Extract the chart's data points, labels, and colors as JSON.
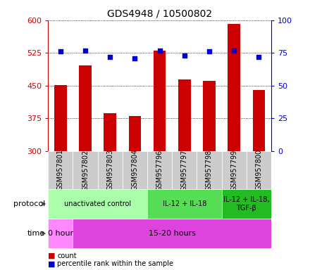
{
  "title": "GDS4948 / 10500802",
  "samples": [
    "GSM957801",
    "GSM957802",
    "GSM957803",
    "GSM957804",
    "GSM957796",
    "GSM957797",
    "GSM957798",
    "GSM957799",
    "GSM957800"
  ],
  "bar_values": [
    451,
    497,
    387,
    381,
    530,
    465,
    461,
    592,
    440
  ],
  "percentile_values": [
    76,
    77,
    72,
    71,
    77,
    73,
    76,
    77,
    72
  ],
  "bar_color": "#cc0000",
  "dot_color": "#0000cc",
  "ylim_left": [
    300,
    600
  ],
  "yticks_left": [
    300,
    375,
    450,
    525,
    600
  ],
  "ylim_right": [
    0,
    100
  ],
  "yticks_right": [
    0,
    25,
    50,
    75,
    100
  ],
  "protocol_groups": [
    {
      "label": "unactivated control",
      "start": 0,
      "end": 4,
      "color": "#aaffaa"
    },
    {
      "label": "IL-12 + IL-18",
      "start": 4,
      "end": 7,
      "color": "#55dd55"
    },
    {
      "label": "IL-12 + IL-18,\nTGF-β",
      "start": 7,
      "end": 9,
      "color": "#22bb22"
    }
  ],
  "time_groups": [
    {
      "label": "0 hour",
      "start": 0,
      "end": 1,
      "color": "#ff88ff"
    },
    {
      "label": "15-20 hours",
      "start": 1,
      "end": 9,
      "color": "#dd44dd"
    }
  ],
  "legend_items": [
    {
      "label": "count",
      "color": "#cc0000"
    },
    {
      "label": "percentile rank within the sample",
      "color": "#0000cc"
    }
  ]
}
